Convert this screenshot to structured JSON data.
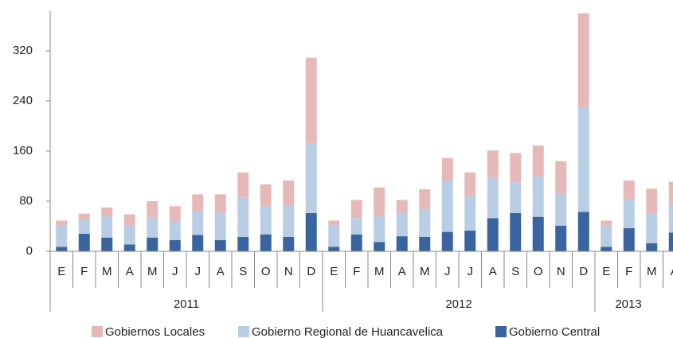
{
  "chart_data": {
    "type": "stacked_bar",
    "categories": [
      "E",
      "F",
      "M",
      "A",
      "M",
      "J",
      "J",
      "A",
      "S",
      "O",
      "N",
      "D",
      "E",
      "F",
      "M",
      "A",
      "M",
      "J",
      "J",
      "A",
      "S",
      "O",
      "N",
      "D",
      "E",
      "F",
      "M",
      "A"
    ],
    "groups": [
      {
        "name": "2011",
        "count": 12
      },
      {
        "name": "2012",
        "count": 12
      },
      {
        "name": "2013",
        "count": 4
      }
    ],
    "series": [
      {
        "name": "Gobiernos Locales",
        "color": "#e6b9b8",
        "values": [
          7,
          10,
          13,
          17,
          25,
          25,
          27,
          29,
          40,
          35,
          40,
          136,
          7,
          29,
          46,
          20,
          31,
          36,
          37,
          43,
          47,
          49,
          52,
          150,
          7,
          30,
          40,
          35
        ]
      },
      {
        "name": "Gobierno Regional de Huancavelica",
        "color": "#b9cde5",
        "values": [
          35,
          22,
          35,
          31,
          33,
          29,
          38,
          44,
          63,
          45,
          50,
          112,
          35,
          26,
          41,
          38,
          45,
          82,
          56,
          65,
          49,
          65,
          51,
          167,
          35,
          46,
          47,
          46
        ]
      },
      {
        "name": "Gobierno Central",
        "color": "#3a64a0",
        "values": [
          7,
          28,
          22,
          11,
          22,
          18,
          26,
          18,
          23,
          27,
          23,
          61,
          7,
          27,
          15,
          24,
          23,
          31,
          33,
          53,
          61,
          55,
          41,
          63,
          7,
          37,
          13,
          30
        ]
      }
    ],
    "ylim": [
      0,
      380
    ],
    "yticks": [
      0,
      80,
      160,
      240,
      320
    ],
    "grid": false,
    "legend": "bottom"
  }
}
